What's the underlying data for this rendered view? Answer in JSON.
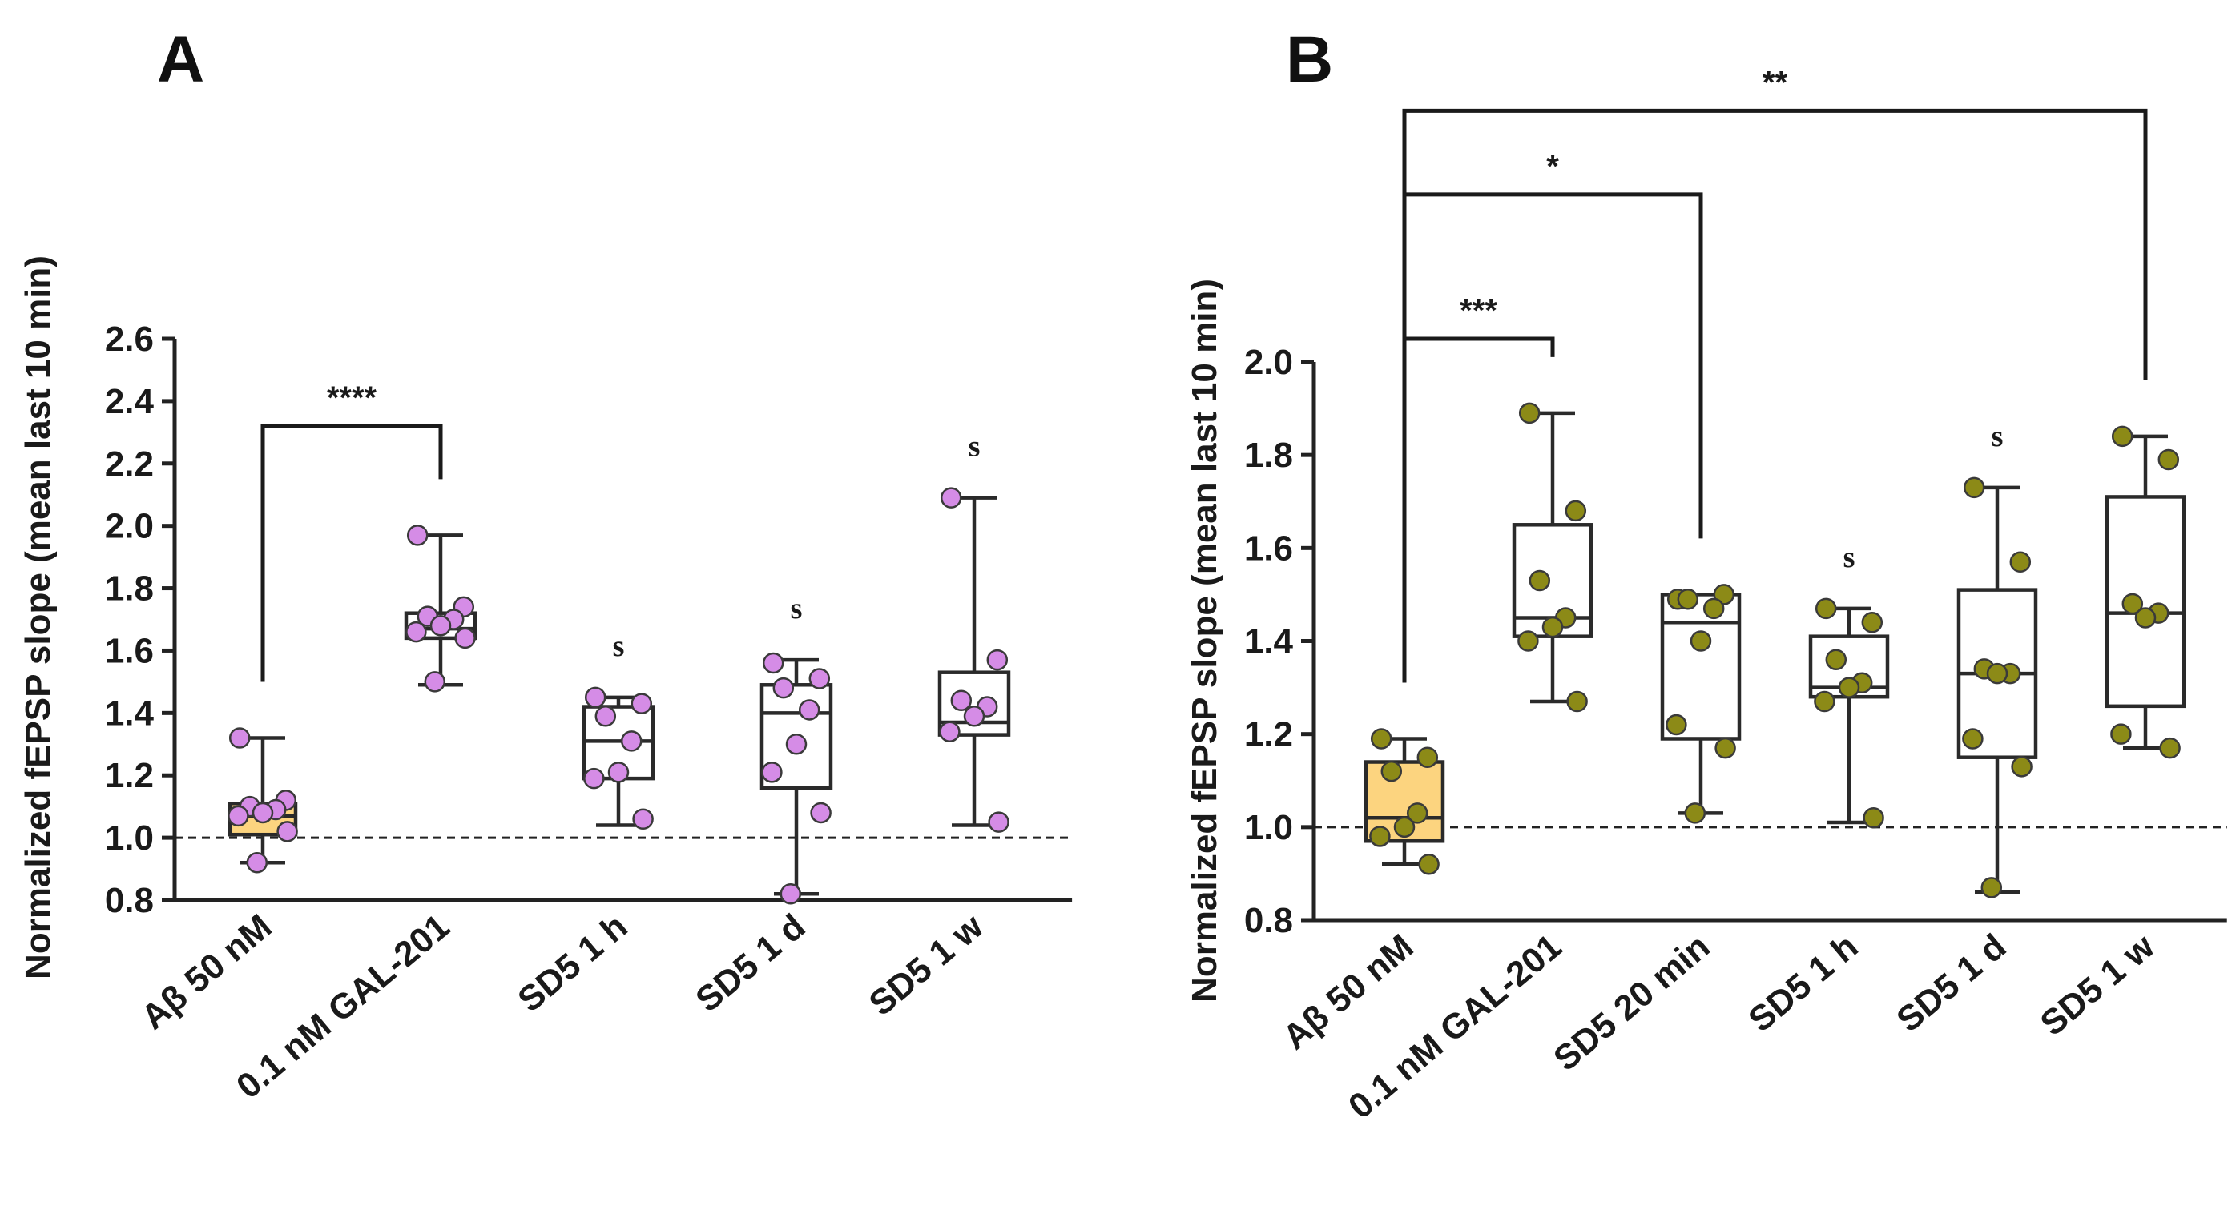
{
  "chart_data": [
    {
      "panel": "A",
      "type": "box",
      "ylabel": "Normalized fEPSP slope (mean last 10 min)",
      "ylim": [
        0.8,
        2.6
      ],
      "yticks": [
        "0.8",
        "1.0",
        "1.2",
        "1.4",
        "1.6",
        "1.8",
        "2.0",
        "2.2",
        "2.4",
        "2.6"
      ],
      "reference_line": 1.0,
      "point_color": "#d58ce6",
      "highlight_color": "#fcd47f",
      "categories": [
        "Aβ 50 nM",
        "0.1 nM GAL-201",
        "SD5 1 h",
        "SD5 1 d",
        "SD5 1 w"
      ],
      "boxes": [
        {
          "min": 0.92,
          "q1": 1.01,
          "median": 1.07,
          "q3": 1.11,
          "max": 1.32,
          "highlight": true,
          "points": [
            1.32,
            1.12,
            1.1,
            1.09,
            1.08,
            1.07,
            1.02,
            0.92
          ],
          "mark": ""
        },
        {
          "min": 1.49,
          "q1": 1.64,
          "median": 1.67,
          "q3": 1.72,
          "max": 1.97,
          "highlight": false,
          "points": [
            1.97,
            1.74,
            1.71,
            1.7,
            1.68,
            1.66,
            1.64,
            1.5
          ],
          "mark": ""
        },
        {
          "min": 1.04,
          "q1": 1.19,
          "median": 1.31,
          "q3": 1.42,
          "max": 1.45,
          "highlight": false,
          "points": [
            1.45,
            1.43,
            1.39,
            1.31,
            1.21,
            1.19,
            1.06
          ],
          "mark": "s"
        },
        {
          "min": 0.82,
          "q1": 1.16,
          "median": 1.4,
          "q3": 1.49,
          "max": 1.57,
          "highlight": false,
          "points": [
            1.56,
            1.51,
            1.48,
            1.41,
            1.3,
            1.21,
            1.08,
            0.82
          ],
          "mark": "s"
        },
        {
          "min": 1.04,
          "q1": 1.33,
          "median": 1.37,
          "q3": 1.53,
          "max": 2.09,
          "highlight": false,
          "points": [
            2.09,
            1.57,
            1.44,
            1.42,
            1.39,
            1.34,
            1.05
          ],
          "mark": "s"
        }
      ],
      "comparisons": [
        {
          "from": 0,
          "to": 1,
          "label": "****",
          "level": 2.32
        }
      ]
    },
    {
      "panel": "B",
      "type": "box",
      "ylabel": "Normalized fEPSP slope (mean last 10 min)",
      "ylim": [
        0.8,
        2.0
      ],
      "yticks": [
        "0.8",
        "1.0",
        "1.2",
        "1.4",
        "1.6",
        "1.8",
        "2.0"
      ],
      "reference_line": 1.0,
      "point_color": "#8c8a17",
      "highlight_color": "#fcd47f",
      "categories": [
        "Aβ 50 nM",
        "0.1 nM GAL-201",
        "SD5 20 min",
        "SD5 1 h",
        "SD5 1 d",
        "SD5 1 w"
      ],
      "boxes": [
        {
          "min": 0.92,
          "q1": 0.97,
          "median": 1.02,
          "q3": 1.14,
          "max": 1.19,
          "highlight": true,
          "points": [
            1.19,
            1.15,
            1.12,
            1.03,
            1.0,
            0.98,
            0.92
          ],
          "mark": ""
        },
        {
          "min": 1.27,
          "q1": 1.41,
          "median": 1.45,
          "q3": 1.65,
          "max": 1.89,
          "highlight": false,
          "points": [
            1.89,
            1.68,
            1.53,
            1.45,
            1.43,
            1.4,
            1.27
          ],
          "mark": ""
        },
        {
          "min": 1.03,
          "q1": 1.19,
          "median": 1.44,
          "q3": 1.5,
          "max": 1.5,
          "highlight": false,
          "points": [
            1.49,
            1.5,
            1.49,
            1.47,
            1.4,
            1.22,
            1.17,
            1.03
          ],
          "mark": ""
        },
        {
          "min": 1.01,
          "q1": 1.28,
          "median": 1.3,
          "q3": 1.41,
          "max": 1.47,
          "highlight": false,
          "points": [
            1.47,
            1.44,
            1.36,
            1.31,
            1.3,
            1.27,
            1.02
          ],
          "mark": "s"
        },
        {
          "min": 0.86,
          "q1": 1.15,
          "median": 1.33,
          "q3": 1.51,
          "max": 1.73,
          "highlight": false,
          "points": [
            1.73,
            1.57,
            1.34,
            1.33,
            1.33,
            1.19,
            1.13,
            0.87
          ],
          "mark": "s"
        },
        {
          "min": 1.17,
          "q1": 1.26,
          "median": 1.46,
          "q3": 1.71,
          "max": 1.84,
          "highlight": false,
          "points": [
            1.84,
            1.79,
            1.48,
            1.46,
            1.45,
            1.2,
            1.17
          ],
          "mark": ""
        }
      ],
      "comparisons": [
        {
          "from": 0,
          "to": 1,
          "label": "***",
          "level": 2.05
        },
        {
          "from": 0,
          "to": 2,
          "label": "*",
          "level": 2.36
        },
        {
          "from": 0,
          "to": 5,
          "label": "**",
          "level": 2.54
        }
      ]
    }
  ]
}
